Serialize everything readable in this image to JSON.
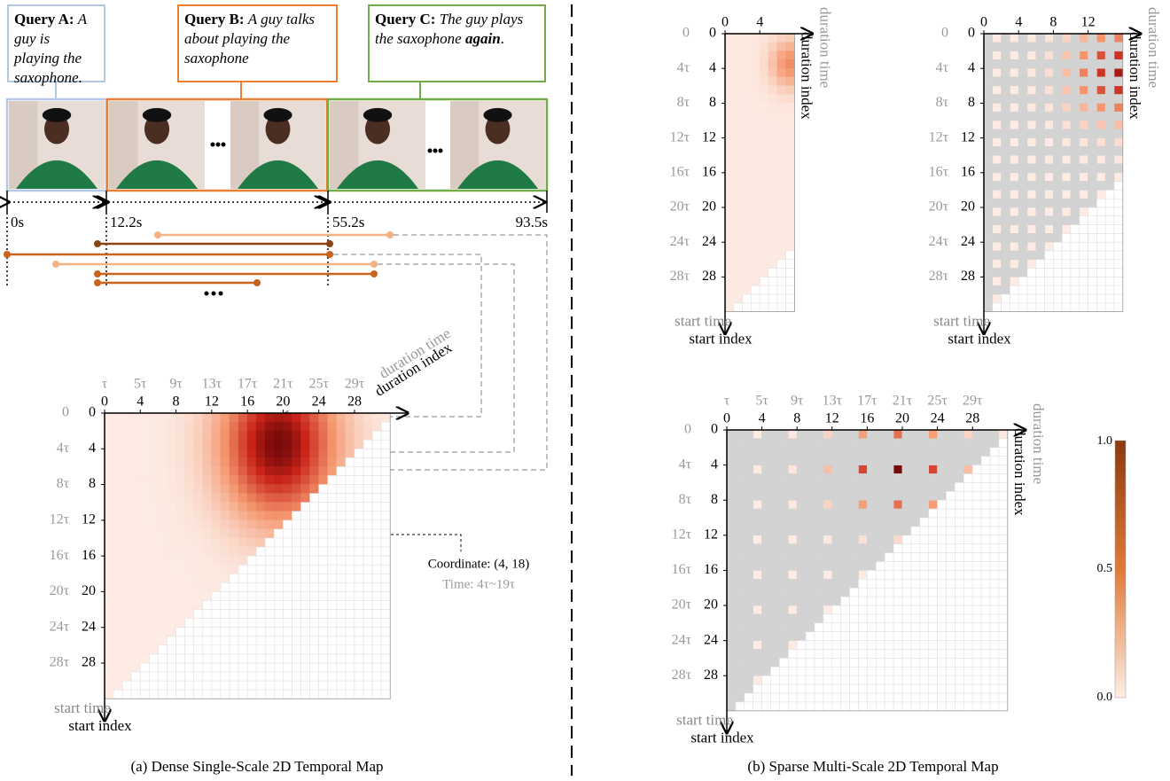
{
  "queries": [
    {
      "label": "Query A:",
      "text": "A guy is playing the saxophone."
    },
    {
      "label": "Query B:",
      "text": "A guy talks about playing the saxophone"
    },
    {
      "label": "Query C:",
      "text": "The guy plays the saxophone",
      "emphasis": "again",
      "end": "."
    }
  ],
  "timeline": [
    "0s",
    "12.2s",
    "55.2s",
    "93.5s"
  ],
  "dense_map": {
    "time_ticks": [
      "τ",
      "5τ",
      "9τ",
      "13τ",
      "17τ",
      "21τ",
      "25τ",
      "29τ"
    ],
    "index_ticks": [
      "0",
      "4",
      "8",
      "12",
      "16",
      "20",
      "24",
      "28"
    ],
    "start_time_ticks": [
      "0",
      "4τ",
      "8τ",
      "12τ",
      "16τ",
      "20τ",
      "24τ",
      "28τ"
    ],
    "start_index_ticks": [
      "0",
      "4",
      "8",
      "12",
      "16",
      "20",
      "24",
      "28"
    ],
    "duration_time": "duration time",
    "duration_index": "duration index",
    "start_time": "start time",
    "start_index": "start index",
    "coordinate": "Coordinate: (4, 18)",
    "time": "Time: 4τ~19τ",
    "caption": "(a) Dense Single-Scale 2D Temporal Map"
  },
  "sparse_maps": [
    {
      "index_ticks": [
        "0",
        "4"
      ],
      "start_time_ticks": [
        "0",
        "4τ",
        "8τ",
        "12τ",
        "16τ",
        "20τ",
        "24τ",
        "28τ"
      ],
      "start_index_ticks": [
        "0",
        "4",
        "8",
        "12",
        "16",
        "20",
        "24",
        "28"
      ],
      "duration_time": "duration time",
      "duration_index": "duration index",
      "start_time": "start time",
      "start_index": "start index"
    },
    {
      "index_ticks": [
        "0",
        "4",
        "8",
        "12"
      ],
      "start_time_ticks": [
        "0",
        "4τ",
        "8τ",
        "12τ",
        "16τ",
        "20τ",
        "24τ",
        "28τ"
      ],
      "start_index_ticks": [
        "0",
        "4",
        "8",
        "12",
        "16",
        "20",
        "24",
        "28"
      ],
      "duration_time": "duration time",
      "duration_index": "duration index",
      "start_time": "start time",
      "start_index": "start index"
    },
    {
      "time_ticks": [
        "τ",
        "5τ",
        "9τ",
        "13τ",
        "17τ",
        "21τ",
        "25τ",
        "29τ"
      ],
      "index_ticks": [
        "0",
        "4",
        "8",
        "12",
        "16",
        "20",
        "24",
        "28"
      ],
      "start_time_ticks": [
        "0",
        "4τ",
        "8τ",
        "12τ",
        "16τ",
        "20τ",
        "24τ",
        "28τ"
      ],
      "start_index_ticks": [
        "0",
        "4",
        "8",
        "12",
        "16",
        "20",
        "24",
        "28"
      ],
      "duration_time": "duration time",
      "duration_index": "duration index",
      "start_time": "start time",
      "start_index": "start index"
    }
  ],
  "colorbar": [
    "1.0",
    "0.5",
    "0.0"
  ],
  "sparse_caption": "(b) Sparse Multi-Scale 2D Temporal Map"
}
